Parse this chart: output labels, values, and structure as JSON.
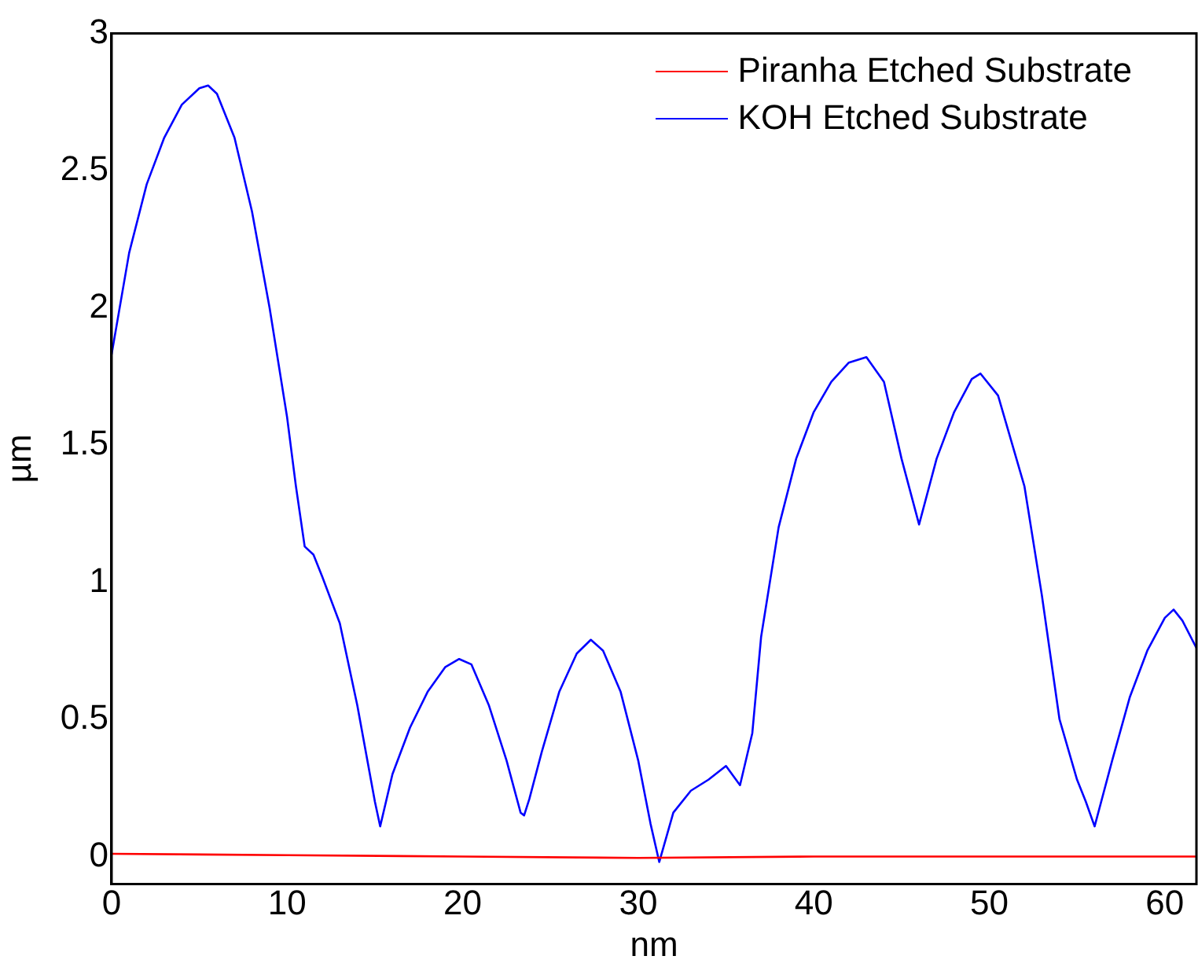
{
  "chart_data": {
    "type": "line",
    "xlabel": "nm",
    "ylabel": "µm",
    "xlim": [
      0,
      61.8
    ],
    "ylim": [
      -0.1,
      3
    ],
    "xticks": [
      0,
      10,
      20,
      30,
      40,
      50,
      60
    ],
    "yticks": [
      0,
      0.5,
      1,
      1.5,
      2,
      2.5,
      3
    ],
    "grid": false,
    "legend": "top right",
    "marker": "none",
    "line_style": "solid",
    "series": [
      {
        "name": "Piranha Etched Substrate",
        "color": "#ff0000",
        "x": [
          0,
          10,
          20,
          30,
          40,
          50,
          61.8
        ],
        "values": [
          0.01,
          0.005,
          0.0,
          -0.005,
          0.0,
          0.0,
          0.0
        ]
      },
      {
        "name": "KOH Etched Substrate",
        "color": "#0000ff",
        "x": [
          0,
          1,
          2,
          3,
          4,
          5,
          5.5,
          6,
          7,
          8,
          9,
          10,
          10.5,
          11,
          11.5,
          12,
          13,
          14,
          15,
          15.3,
          16,
          17,
          18,
          19,
          19.8,
          20.5,
          21.5,
          22.5,
          23.3,
          23.5,
          23.8,
          24.5,
          25.5,
          26.5,
          27.3,
          28,
          29,
          30,
          30.7,
          31.2,
          32,
          33,
          34,
          35,
          35.8,
          36.5,
          37,
          38,
          39,
          40,
          41,
          42,
          43,
          44,
          45,
          46,
          47,
          48,
          49,
          49.5,
          50.5,
          52,
          53,
          54,
          55,
          55.5,
          56,
          57,
          58,
          59,
          60,
          60.5,
          61,
          61.8
        ],
        "values": [
          1.83,
          2.2,
          2.45,
          2.62,
          2.74,
          2.8,
          2.81,
          2.78,
          2.62,
          2.35,
          2.0,
          1.6,
          1.35,
          1.13,
          1.1,
          1.02,
          0.85,
          0.55,
          0.2,
          0.11,
          0.3,
          0.47,
          0.6,
          0.69,
          0.72,
          0.7,
          0.55,
          0.35,
          0.16,
          0.15,
          0.21,
          0.38,
          0.6,
          0.74,
          0.79,
          0.75,
          0.6,
          0.35,
          0.12,
          -0.02,
          0.16,
          0.24,
          0.28,
          0.33,
          0.26,
          0.45,
          0.8,
          1.2,
          1.45,
          1.62,
          1.73,
          1.8,
          1.82,
          1.73,
          1.45,
          1.21,
          1.45,
          1.62,
          1.74,
          1.76,
          1.68,
          1.35,
          0.95,
          0.5,
          0.28,
          0.2,
          0.11,
          0.35,
          0.58,
          0.75,
          0.87,
          0.9,
          0.86,
          0.76
        ]
      }
    ]
  }
}
